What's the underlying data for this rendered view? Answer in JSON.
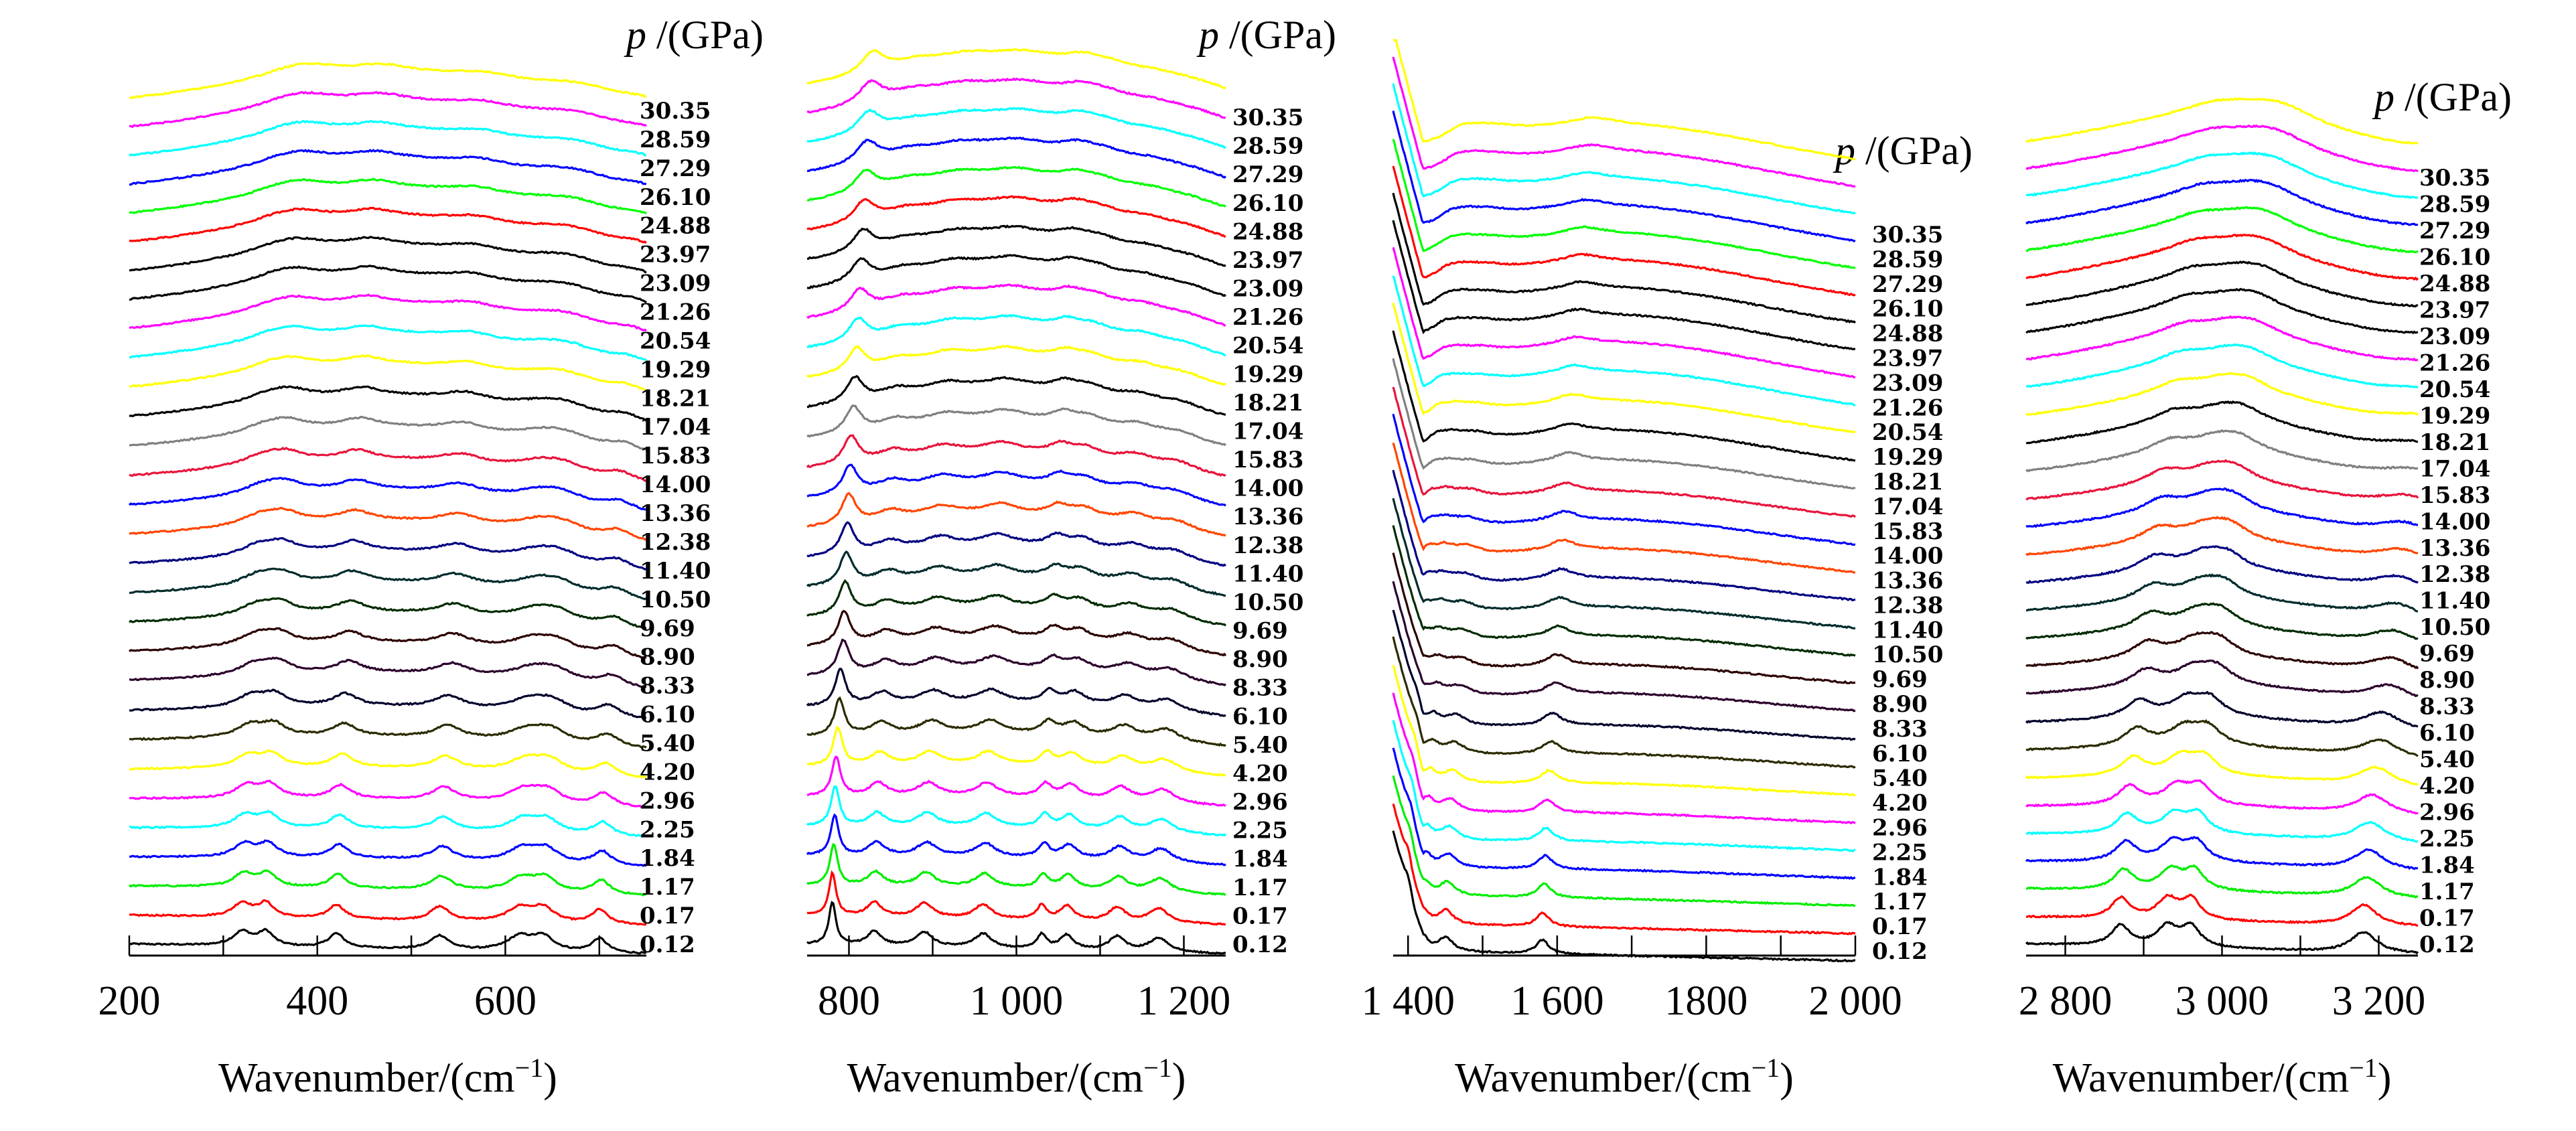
{
  "chart_data": [
    {
      "type": "line",
      "panel": "raman-200-750",
      "title": "",
      "xlabel": "Wavenumber/(cm⁻¹)",
      "ylabel": "",
      "legend_title": "p /(GPa)",
      "xlim": [
        200,
        750
      ],
      "xticks": [
        200,
        300,
        400,
        500,
        600,
        700
      ],
      "xtick_labels": [
        "200",
        "",
        "400",
        "",
        "600",
        ""
      ],
      "peaks": [
        [
          320,
          12
        ],
        [
          345,
          10
        ],
        [
          420,
          10
        ],
        [
          530,
          12
        ],
        [
          615,
          16
        ],
        [
          640,
          14
        ],
        [
          700,
          10
        ]
      ],
      "grid": false,
      "legend": "right"
    },
    {
      "type": "line",
      "panel": "raman-750-1250",
      "title": "",
      "xlabel": "Wavenumber/(cm⁻¹)",
      "ylabel": "",
      "legend_title": "p /(GPa)",
      "xlim": [
        750,
        1250
      ],
      "xticks": [
        800,
        900,
        1000,
        1100,
        1200
      ],
      "xtick_labels": [
        "800",
        "",
        "1 000",
        "",
        "1 200"
      ],
      "peaks": [
        [
          780,
          5
        ],
        [
          830,
          10
        ],
        [
          890,
          12
        ],
        [
          960,
          12
        ],
        [
          1030,
          7
        ],
        [
          1060,
          10
        ],
        [
          1120,
          12
        ],
        [
          1170,
          14
        ]
      ],
      "grid": false,
      "legend": "right"
    },
    {
      "type": "line",
      "panel": "raman-1400-2000",
      "title": "",
      "xlabel": "Wavenumber/(cm⁻¹)",
      "ylabel": "",
      "legend_title": "p /(GPa)",
      "xlim": [
        1380,
        2000
      ],
      "xticks": [
        1400,
        1500,
        1600,
        1700,
        1800,
        1900,
        2000
      ],
      "xtick_labels": [
        "1 400",
        "",
        "1 600",
        "",
        "1800",
        "",
        "2 000"
      ],
      "peaks": [
        [
          1400,
          6
        ],
        [
          1420,
          8
        ],
        [
          1450,
          12
        ],
        [
          1580,
          10
        ]
      ],
      "grid": false,
      "legend": "right"
    },
    {
      "type": "line",
      "panel": "raman-2750-3250",
      "title": "",
      "xlabel": "Wavenumber/(cm⁻¹)",
      "ylabel": "",
      "legend_title": "p /(GPa)",
      "xlim": [
        2750,
        3250
      ],
      "xticks": [
        2800,
        2900,
        3000,
        3100,
        3200
      ],
      "xtick_labels": [
        "2 800",
        "",
        "3 000",
        "",
        "3 200"
      ],
      "peaks": [
        [
          2870,
          14
        ],
        [
          2930,
          16
        ],
        [
          2960,
          14
        ],
        [
          3180,
          20
        ]
      ],
      "grid": false,
      "legend": "right"
    }
  ],
  "series": [
    {
      "name": "0.12",
      "color": "#000000"
    },
    {
      "name": "0.17",
      "color": "#ff0000"
    },
    {
      "name": "1.17",
      "color": "#00ee00"
    },
    {
      "name": "1.84",
      "color": "#0000ff"
    },
    {
      "name": "2.25",
      "color": "#00ffff"
    },
    {
      "name": "2.96",
      "color": "#ff00ff"
    },
    {
      "name": "4.20",
      "color": "#ffff00"
    },
    {
      "name": "5.40",
      "color": "#2b2b00"
    },
    {
      "name": "6.10",
      "color": "#00002b"
    },
    {
      "name": "8.33",
      "color": "#2b002b"
    },
    {
      "name": "8.90",
      "color": "#2b0000"
    },
    {
      "name": "9.69",
      "color": "#002b00"
    },
    {
      "name": "10.50",
      "color": "#002b2b"
    },
    {
      "name": "11.40",
      "color": "#000080"
    },
    {
      "name": "12.38",
      "color": "#ff4500"
    },
    {
      "name": "13.36",
      "color": "#0000ff"
    },
    {
      "name": "14.00",
      "color": "#e8143c"
    },
    {
      "name": "15.83",
      "color": "#808080"
    },
    {
      "name": "17.04",
      "color": "#000000"
    },
    {
      "name": "18.21",
      "color": "#ffff00"
    },
    {
      "name": "19.29",
      "color": "#00ffff"
    },
    {
      "name": "20.54",
      "color": "#ff00ff"
    },
    {
      "name": "21.26",
      "color": "#000000"
    },
    {
      "name": "23.09",
      "color": "#000000"
    },
    {
      "name": "23.97",
      "color": "#ff0000"
    },
    {
      "name": "24.88",
      "color": "#00ff00"
    },
    {
      "name": "26.10",
      "color": "#0000ff"
    },
    {
      "name": "27.29",
      "color": "#00ffff"
    },
    {
      "name": "28.59",
      "color": "#ff00ff"
    },
    {
      "name": "30.35",
      "color": "#ffff00"
    }
  ]
}
